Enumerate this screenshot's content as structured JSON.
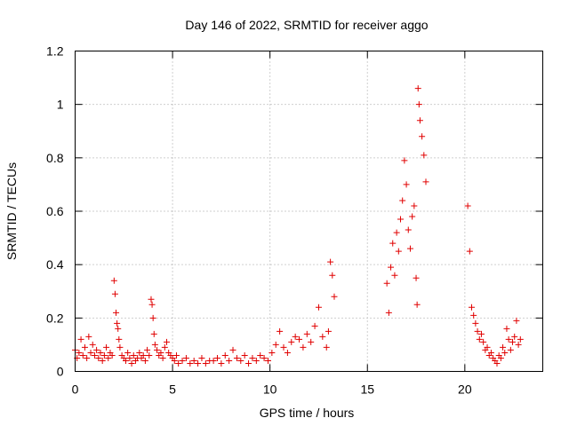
{
  "chart_data": {
    "type": "scatter",
    "title": "Day 146 of 2022, SRMTID for receiver aggo",
    "xlabel": "GPS time / hours",
    "ylabel": "SRMTID / TECUs",
    "xlim": [
      0,
      24
    ],
    "ylim": [
      0,
      1.2
    ],
    "xticks": [
      0,
      5,
      10,
      15,
      20
    ],
    "xtick_labels": [
      "0",
      "5",
      "10",
      "15",
      "20"
    ],
    "yticks": [
      0,
      0.2,
      0.4,
      0.6,
      0.8,
      1.0,
      1.2
    ],
    "ytick_labels": [
      "0",
      "0.2",
      "0.4",
      "0.6",
      "0.8",
      "1",
      "1.2"
    ],
    "grid": true,
    "marker": "+",
    "series": [
      {
        "name": "SRMTID",
        "color": "#e00000",
        "x": [
          0.0,
          0.1,
          0.2,
          0.3,
          0.4,
          0.5,
          0.6,
          0.7,
          0.8,
          0.9,
          1.0,
          1.1,
          1.2,
          1.3,
          1.4,
          1.5,
          1.6,
          1.7,
          1.8,
          1.9,
          2.0,
          2.05,
          2.1,
          2.15,
          2.2,
          2.25,
          2.3,
          2.4,
          2.5,
          2.6,
          2.7,
          2.8,
          2.9,
          3.0,
          3.1,
          3.2,
          3.3,
          3.4,
          3.5,
          3.6,
          3.7,
          3.8,
          3.9,
          3.95,
          4.0,
          4.05,
          4.1,
          4.2,
          4.3,
          4.4,
          4.5,
          4.6,
          4.7,
          4.8,
          4.9,
          5.0,
          5.1,
          5.2,
          5.3,
          5.5,
          5.7,
          5.9,
          6.1,
          6.3,
          6.5,
          6.7,
          6.9,
          7.1,
          7.3,
          7.5,
          7.7,
          7.9,
          8.1,
          8.3,
          8.5,
          8.7,
          8.9,
          9.1,
          9.3,
          9.5,
          9.7,
          9.9,
          10.1,
          10.3,
          10.5,
          10.7,
          10.9,
          11.1,
          11.3,
          11.5,
          11.7,
          11.9,
          12.1,
          12.3,
          12.5,
          12.7,
          12.9,
          13.0,
          13.1,
          13.2,
          13.3,
          16.0,
          16.1,
          16.2,
          16.3,
          16.4,
          16.5,
          16.6,
          16.7,
          16.8,
          16.9,
          17.0,
          17.1,
          17.2,
          17.3,
          17.4,
          17.5,
          17.55,
          17.6,
          17.65,
          17.7,
          17.8,
          17.9,
          18.0,
          20.15,
          20.25,
          20.35,
          20.45,
          20.55,
          20.65,
          20.75,
          20.85,
          20.95,
          21.05,
          21.15,
          21.25,
          21.35,
          21.45,
          21.55,
          21.65,
          21.75,
          21.85,
          21.95,
          22.05,
          22.15,
          22.25,
          22.35,
          22.45,
          22.55,
          22.65,
          22.75,
          22.85
        ],
        "y": [
          0.08,
          0.05,
          0.07,
          0.12,
          0.06,
          0.09,
          0.05,
          0.13,
          0.07,
          0.1,
          0.06,
          0.08,
          0.05,
          0.07,
          0.04,
          0.06,
          0.09,
          0.05,
          0.07,
          0.06,
          0.34,
          0.29,
          0.22,
          0.18,
          0.16,
          0.12,
          0.09,
          0.06,
          0.05,
          0.04,
          0.07,
          0.05,
          0.03,
          0.06,
          0.04,
          0.05,
          0.07,
          0.05,
          0.06,
          0.04,
          0.08,
          0.06,
          0.27,
          0.25,
          0.2,
          0.14,
          0.1,
          0.08,
          0.06,
          0.07,
          0.05,
          0.09,
          0.11,
          0.07,
          0.06,
          0.05,
          0.04,
          0.06,
          0.03,
          0.04,
          0.05,
          0.03,
          0.04,
          0.03,
          0.05,
          0.03,
          0.04,
          0.04,
          0.05,
          0.03,
          0.06,
          0.04,
          0.08,
          0.05,
          0.04,
          0.06,
          0.03,
          0.05,
          0.04,
          0.06,
          0.05,
          0.04,
          0.07,
          0.1,
          0.15,
          0.09,
          0.07,
          0.11,
          0.13,
          0.12,
          0.09,
          0.14,
          0.11,
          0.17,
          0.24,
          0.13,
          0.09,
          0.15,
          0.41,
          0.36,
          0.28,
          0.33,
          0.22,
          0.39,
          0.48,
          0.36,
          0.52,
          0.45,
          0.57,
          0.64,
          0.79,
          0.7,
          0.53,
          0.46,
          0.58,
          0.62,
          0.35,
          0.25,
          1.06,
          1.0,
          0.94,
          0.88,
          0.81,
          0.71,
          0.62,
          0.45,
          0.24,
          0.21,
          0.18,
          0.15,
          0.12,
          0.14,
          0.11,
          0.08,
          0.09,
          0.06,
          0.07,
          0.05,
          0.04,
          0.03,
          0.06,
          0.05,
          0.09,
          0.07,
          0.16,
          0.12,
          0.08,
          0.11,
          0.13,
          0.19,
          0.1,
          0.12
        ]
      }
    ]
  }
}
